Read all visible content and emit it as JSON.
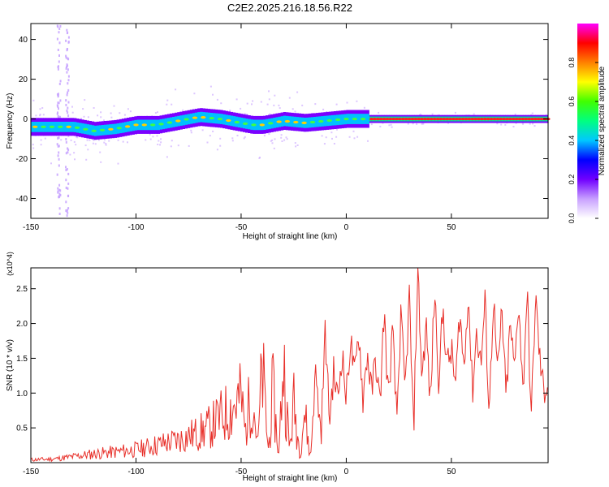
{
  "title": "C2E2.2025.216.18.56.R22",
  "colors": {
    "snr_line": "#e8302a",
    "axis": "#000000",
    "background": "#ffffff"
  },
  "chart_data": [
    {
      "type": "heatmap",
      "xlabel": "Height of straight line (km)",
      "ylabel": "Frequency (Hz)",
      "xlim": [
        -150,
        96
      ],
      "ylim": [
        -50,
        48
      ],
      "x_ticks": [
        -150,
        -100,
        -50,
        0,
        50
      ],
      "x_tick_labels": [
        "-150",
        "-100",
        "-50",
        "0",
        "50"
      ],
      "y_ticks": [
        -40,
        -20,
        0,
        20,
        40
      ],
      "y_tick_labels": [
        "-40",
        "-20",
        "0",
        "20",
        "40"
      ],
      "colorbar": {
        "label": "Normalized spectral amplitude",
        "range": [
          0,
          1
        ],
        "ticks": [
          0,
          0.2,
          0.4,
          0.6,
          0.8
        ],
        "tick_labels": [
          "0.0",
          "0.2",
          "0.4",
          "0.6",
          "0.8"
        ],
        "colormap": [
          "#ffffff",
          "#c8a0ff",
          "#7000ff",
          "#0000ff",
          "#00c8ff",
          "#00ff80",
          "#40ff00",
          "#ffff00",
          "#ff8000",
          "#ff0000",
          "#ff00ff"
        ]
      },
      "ridge": {
        "x": [
          -150,
          -140,
          -130,
          -120,
          -110,
          -100,
          -90,
          -80,
          -70,
          -60,
          -50,
          -45,
          -40,
          -30,
          -20,
          -10,
          0,
          10,
          20,
          40,
          60,
          80,
          96
        ],
        "y": [
          -4,
          -4,
          -4,
          -6,
          -5,
          -3,
          -3,
          -1,
          1,
          0,
          -2,
          -3,
          -3,
          -1,
          -2,
          -1,
          0,
          0,
          0,
          0,
          0,
          0,
          0
        ]
      },
      "vertical_streak_x": [
        -137,
        -133
      ]
    },
    {
      "type": "line",
      "xlabel": "Height of straight line (km)",
      "ylabel": "SNR (10 * v/v)",
      "y_multiplier": "(x10^4)",
      "xlim": [
        -150,
        96
      ],
      "ylim": [
        0,
        2.8
      ],
      "x_ticks": [
        -150,
        -100,
        -50,
        0,
        50
      ],
      "x_tick_labels": [
        "-150",
        "-100",
        "-50",
        "0",
        "50"
      ],
      "y_ticks": [
        0.5,
        1.0,
        1.5,
        2.0,
        2.5
      ],
      "y_tick_labels": [
        "0.5",
        "1.0",
        "1.5",
        "2.0",
        "2.5"
      ],
      "series": [
        {
          "color": "#e8302a",
          "x": [
            -150,
            -140,
            -130,
            -120,
            -110,
            -100,
            -90,
            -80,
            -75,
            -70,
            -65,
            -60,
            -55,
            -50,
            -48,
            -45,
            -42,
            -40,
            -37,
            -35,
            -32,
            -30,
            -27,
            -25,
            -22,
            -20,
            -17,
            -15,
            -12,
            -10,
            -8,
            -6,
            -4,
            -2,
            0,
            2,
            4,
            6,
            8,
            10,
            12,
            14,
            16,
            18,
            20,
            22,
            24,
            26,
            28,
            30,
            32,
            34,
            36,
            38,
            40,
            42,
            44,
            46,
            48,
            50,
            52,
            54,
            56,
            58,
            60,
            62,
            64,
            66,
            68,
            70,
            72,
            74,
            76,
            78,
            80,
            82,
            84,
            86,
            88,
            90,
            92,
            94,
            96
          ],
          "y": [
            0.05,
            0.06,
            0.1,
            0.15,
            0.18,
            0.22,
            0.3,
            0.38,
            0.45,
            0.5,
            0.6,
            0.75,
            0.9,
            1.1,
            0.5,
            1.3,
            0.3,
            1.6,
            0.2,
            1.2,
            0.1,
            1.8,
            0.2,
            1.0,
            0.15,
            0.9,
            0.05,
            1.4,
            0.4,
            1.9,
            0.6,
            1.3,
            0.9,
            1.6,
            0.9,
            1.8,
            1.2,
            1.9,
            0.9,
            1.6,
            1.0,
            1.5,
            0.8,
            2.2,
            0.9,
            1.9,
            0.6,
            2.1,
            1.0,
            2.4,
            0.4,
            2.8,
            1.2,
            2.0,
            0.8,
            2.5,
            1.2,
            2.2,
            1.4,
            1.6,
            1.1,
            2.2,
            1.3,
            2.5,
            1.0,
            1.9,
            1.4,
            2.3,
            0.7,
            2.4,
            1.2,
            2.2,
            0.9,
            2.0,
            1.3,
            2.4,
            1.0,
            2.5,
            0.6,
            2.4,
            1.5,
            1.0,
            1.2
          ]
        }
      ]
    }
  ]
}
